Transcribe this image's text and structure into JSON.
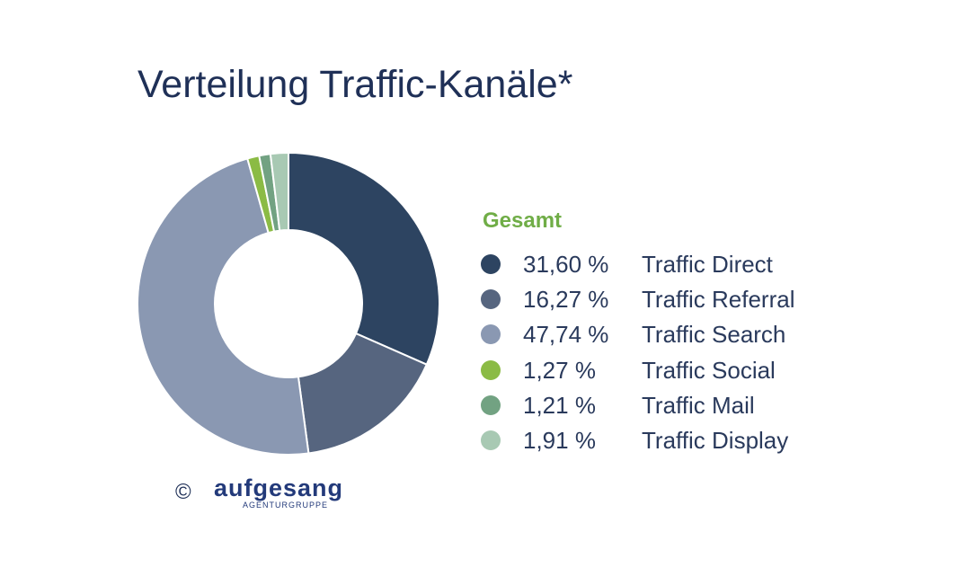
{
  "chart_data": {
    "type": "pie",
    "donut": true,
    "title": "Verteilung Traffic-Kanäle*",
    "legend_title": "Gesamt",
    "legend_placement": "right",
    "categories": [
      "Traffic Direct",
      "Traffic Referral",
      "Traffic Search",
      "Traffic Social",
      "Traffic Mail",
      "Traffic Display"
    ],
    "values": [
      31.6,
      16.27,
      47.74,
      1.27,
      1.21,
      1.91
    ],
    "value_labels": [
      "31,60 %",
      "16,27 %",
      "47,74 %",
      "1,27 %",
      "1,21 %",
      "1,91 %"
    ],
    "colors": [
      "#2d4461",
      "#56657f",
      "#8a98b2",
      "#8bbb45",
      "#72a282",
      "#a8c9b3"
    ]
  },
  "footer": {
    "copyright": "©",
    "logo": "aufgesang",
    "logo_sub": "AGENTURGRUPPE"
  }
}
